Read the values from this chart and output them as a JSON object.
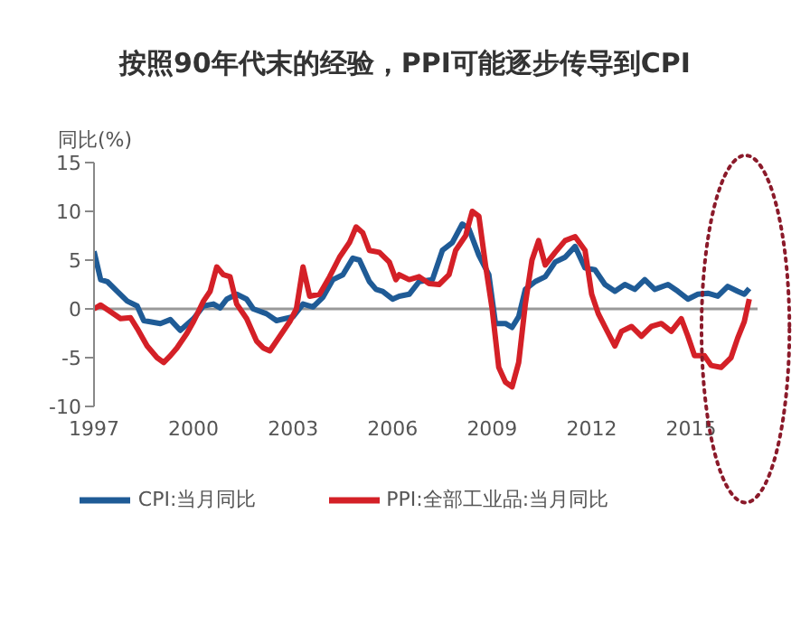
{
  "chart_data": {
    "type": "line",
    "title": "按照90年代末的经验，PPI可能逐步传导到CPI",
    "ylabel": "同比(%)",
    "xlim": [
      1997,
      2017
    ],
    "xticks": [
      1997,
      2000,
      2003,
      2006,
      2009,
      2012,
      2015
    ],
    "ylim": [
      -10,
      15
    ],
    "yticks": [
      -10,
      -5,
      0,
      5,
      10,
      15
    ],
    "grid": false,
    "legend": "bottom",
    "marker": "none",
    "line_style": "solid",
    "ref_lines": [
      {
        "axis": "y",
        "value": 0,
        "color": "#999999"
      }
    ],
    "series": [
      {
        "name": "CPI:当月同比",
        "color": "#1f5b96",
        "x": [
          1997.0,
          1997.2,
          1997.4,
          1997.7,
          1998.0,
          1998.3,
          1998.5,
          1999.0,
          1999.3,
          1999.6,
          2000.0,
          2000.3,
          2000.6,
          2000.8,
          2001.0,
          2001.3,
          2001.6,
          2001.8,
          2002.2,
          2002.5,
          2003.0,
          2003.3,
          2003.6,
          2003.9,
          2004.2,
          2004.5,
          2004.8,
          2005.0,
          2005.3,
          2005.5,
          2005.7,
          2006.0,
          2006.2,
          2006.5,
          2006.8,
          2007.2,
          2007.5,
          2007.8,
          2008.1,
          2008.3,
          2008.6,
          2008.9,
          2009.1,
          2009.4,
          2009.6,
          2009.8,
          2010.0,
          2010.3,
          2010.6,
          2010.9,
          2011.2,
          2011.5,
          2011.8,
          2012.1,
          2012.4,
          2012.7,
          2013.0,
          2013.3,
          2013.6,
          2013.9,
          2014.3,
          2014.6,
          2014.9,
          2015.2,
          2015.5,
          2015.8,
          2016.1,
          2016.4,
          2016.6,
          2016.75
        ],
        "values": [
          5.9,
          3.0,
          2.8,
          1.8,
          0.8,
          0.3,
          -1.2,
          -1.5,
          -1.1,
          -2.2,
          -1.0,
          0.3,
          0.5,
          0.1,
          1.0,
          1.5,
          1.0,
          0,
          -0.5,
          -1.2,
          -0.8,
          0.5,
          0.2,
          1.2,
          3.0,
          3.5,
          5.2,
          5.0,
          2.8,
          2.0,
          1.8,
          1.0,
          1.3,
          1.5,
          2.8,
          3.0,
          6.0,
          6.8,
          8.7,
          8.2,
          5.5,
          3.5,
          -1.5,
          -1.5,
          -1.9,
          -0.8,
          2.0,
          2.8,
          3.3,
          4.8,
          5.3,
          6.4,
          4.2,
          4.0,
          2.5,
          1.8,
          2.5,
          2.0,
          3.0,
          2.0,
          2.5,
          1.8,
          1.0,
          1.5,
          1.6,
          1.3,
          2.3,
          1.8,
          1.5,
          2.1
        ]
      },
      {
        "name": "PPI:全部工业品:当月同比",
        "color": "#d42027",
        "x": [
          1997.0,
          1997.2,
          1997.5,
          1997.8,
          1998.1,
          1998.3,
          1998.6,
          1998.9,
          1999.1,
          1999.3,
          1999.5,
          1999.8,
          2000.0,
          2000.3,
          2000.5,
          2000.7,
          2000.9,
          2001.1,
          2001.3,
          2001.6,
          2001.9,
          2002.1,
          2002.3,
          2002.6,
          2002.9,
          2003.1,
          2003.3,
          2003.5,
          2003.8,
          2004.1,
          2004.4,
          2004.7,
          2004.9,
          2005.1,
          2005.3,
          2005.6,
          2005.9,
          2006.1,
          2006.2,
          2006.5,
          2006.8,
          2007.1,
          2007.4,
          2007.7,
          2007.9,
          2008.2,
          2008.4,
          2008.6,
          2008.8,
          2009.0,
          2009.2,
          2009.4,
          2009.6,
          2009.8,
          2010.0,
          2010.2,
          2010.4,
          2010.6,
          2010.9,
          2011.2,
          2011.5,
          2011.8,
          2012.0,
          2012.2,
          2012.5,
          2012.7,
          2012.9,
          2013.2,
          2013.5,
          2013.8,
          2014.1,
          2014.4,
          2014.7,
          2014.9,
          2015.1,
          2015.4,
          2015.6,
          2015.9,
          2016.2,
          2016.4,
          2016.6,
          2016.75
        ],
        "values": [
          0,
          0.4,
          -0.3,
          -1.0,
          -0.9,
          -2.0,
          -3.8,
          -5.0,
          -5.5,
          -4.8,
          -4.0,
          -2.5,
          -1.3,
          0.8,
          1.8,
          4.3,
          3.5,
          3.3,
          0.5,
          -1.0,
          -3.3,
          -4.0,
          -4.3,
          -2.8,
          -1.3,
          0,
          4.3,
          1.3,
          1.5,
          3.3,
          5.3,
          6.8,
          8.4,
          7.8,
          6.0,
          5.8,
          4.8,
          3.0,
          3.5,
          3.0,
          3.3,
          2.6,
          2.5,
          3.5,
          6.0,
          7.5,
          10.0,
          9.5,
          4.5,
          0,
          -6.0,
          -7.5,
          -8.0,
          -5.5,
          0.5,
          5.0,
          7.0,
          4.5,
          5.8,
          7.0,
          7.4,
          6.0,
          1.5,
          -0.5,
          -2.5,
          -3.8,
          -2.3,
          -1.8,
          -2.8,
          -1.8,
          -1.5,
          -2.3,
          -1.0,
          -2.8,
          -4.8,
          -4.8,
          -5.8,
          -6.0,
          -5.0,
          -3.0,
          -1.3,
          1.0
        ]
      }
    ]
  }
}
